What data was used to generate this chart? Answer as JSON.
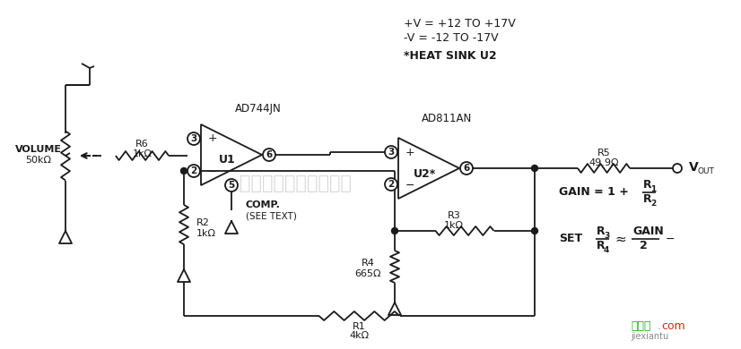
{
  "line_color": "#1a1a1a",
  "annotations": {
    "voltage_pos": "+V = +12 TO +17V",
    "voltage_neg": "-V = -12 TO -17V",
    "heat_sink": "*HEAT SINK U2",
    "u1_label": "AD744JN",
    "u2_label": "AD811AN",
    "u1_name": "U1",
    "u2_name": "U2*",
    "r6_label": "R6",
    "r6_val": "1kΩ",
    "r2_label": "R2",
    "r2_val": "1kΩ",
    "r1_label": "R1",
    "r1_val": "4kΩ",
    "r3_label": "R3",
    "r3_val": "1kΩ",
    "r4_label": "R4",
    "r4_val": "665Ω",
    "r5_label": "R5",
    "r5_val": "49.9Ω",
    "volume_label": "VOLUME",
    "volume_val": "50kΩ",
    "comp_label": "COMP.",
    "comp_text": "(SEE TEXT)"
  }
}
